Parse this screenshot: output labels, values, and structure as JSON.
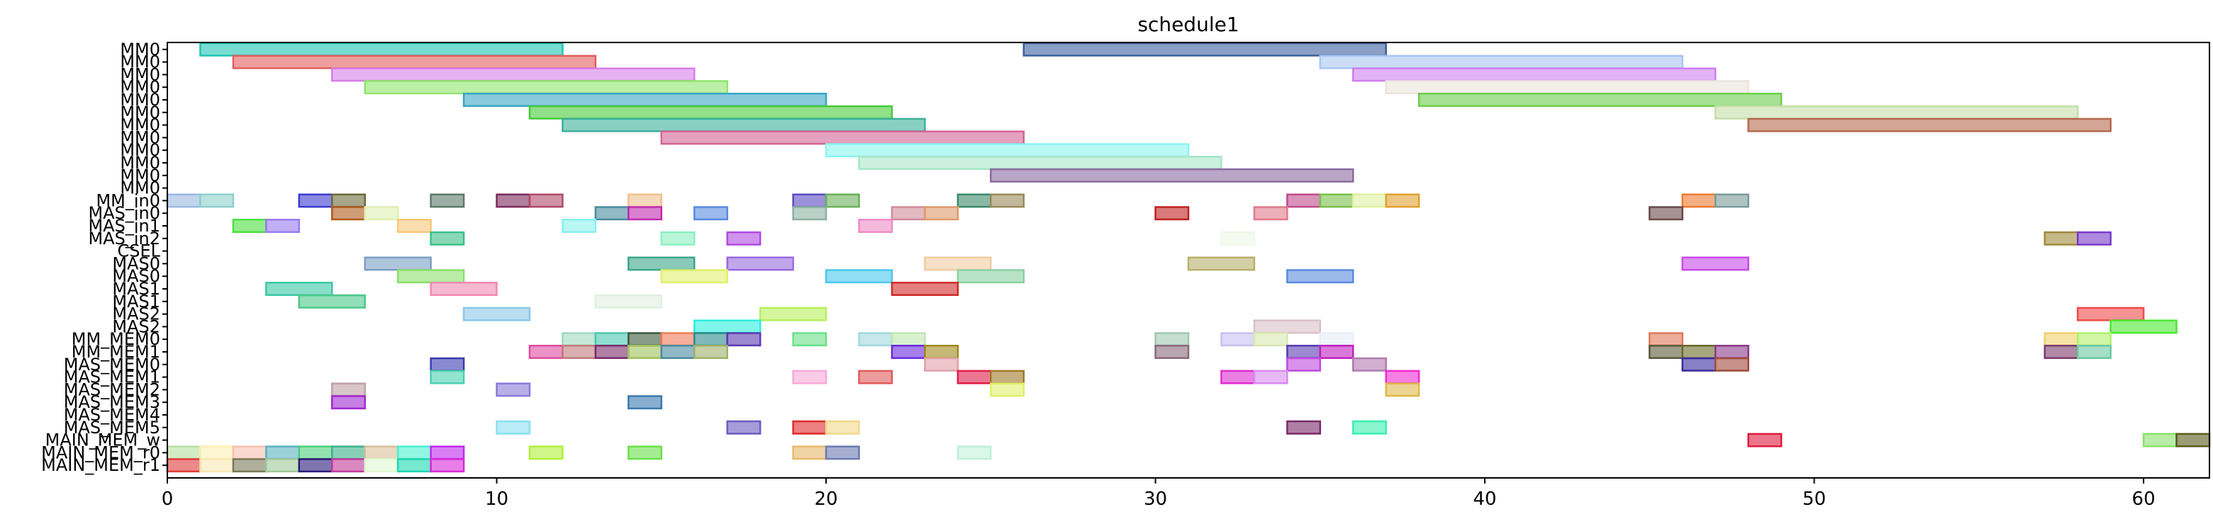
{
  "chart_data": {
    "type": "gantt",
    "title": "schedule1",
    "xlabel": "",
    "ylabel": "",
    "xlim": [
      0,
      62
    ],
    "x_ticks": [
      0,
      10,
      20,
      30,
      40,
      50,
      60
    ],
    "grid": false,
    "legend": "none",
    "rows": [
      "MM0",
      "MM0",
      "MM0",
      "MM0",
      "MM0",
      "MM0",
      "MM0",
      "MM0",
      "MM0",
      "MM0",
      "MM0",
      "MM0",
      "MM_in0",
      "MAS_in0",
      "MAS_in1",
      "MAS_in2",
      "CSEL",
      "MAS0",
      "MAS0",
      "MAS1",
      "MAS1",
      "MAS2",
      "MAS2",
      "MM_MEM0",
      "MM_MEM1",
      "MAS_MEM0",
      "MAS_MEM1",
      "MAS_MEM2",
      "MAS_MEM3",
      "MAS_MEM4",
      "MAS_MEM5",
      "MAIN_MEM_w",
      "MAIN_MEM_r0",
      "MAIN_MEM_r1"
    ],
    "bars": [
      {
        "row": 0,
        "start": 1,
        "end": 12,
        "color": "#1cc4b4"
      },
      {
        "row": 0,
        "start": 26,
        "end": 37,
        "color": "#3a5f9e"
      },
      {
        "row": 1,
        "start": 2,
        "end": 13,
        "color": "#e35d5d"
      },
      {
        "row": 1,
        "start": 35,
        "end": 46,
        "color": "#a9c4f2"
      },
      {
        "row": 2,
        "start": 5,
        "end": 16,
        "color": "#d77ee8"
      },
      {
        "row": 2,
        "start": 36,
        "end": 47,
        "color": "#cf7ef0"
      },
      {
        "row": 3,
        "start": 6,
        "end": 17,
        "color": "#8fe66b"
      },
      {
        "row": 3,
        "start": 37,
        "end": 48,
        "color": "#eae4dc"
      },
      {
        "row": 4,
        "start": 9,
        "end": 20,
        "color": "#3aa6c4"
      },
      {
        "row": 4,
        "start": 38,
        "end": 49,
        "color": "#6ccf4a"
      },
      {
        "row": 5,
        "start": 11,
        "end": 22,
        "color": "#47c93a"
      },
      {
        "row": 5,
        "start": 47,
        "end": 58,
        "color": "#c4e0a8"
      },
      {
        "row": 6,
        "start": 12,
        "end": 23,
        "color": "#3ab09a"
      },
      {
        "row": 6,
        "start": 48,
        "end": 59,
        "color": "#b5694f"
      },
      {
        "row": 7,
        "start": 15,
        "end": 26,
        "color": "#d46496"
      },
      {
        "row": 8,
        "start": 20,
        "end": 31,
        "color": "#8af5f0"
      },
      {
        "row": 9,
        "start": 21,
        "end": 32,
        "color": "#a6e6c8"
      },
      {
        "row": 10,
        "start": 25,
        "end": 36,
        "color": "#8a6aa0"
      },
      {
        "row": 12,
        "start": 0,
        "end": 1,
        "color": "#9ab8e0"
      },
      {
        "row": 12,
        "start": 1,
        "end": 2,
        "color": "#8ed0cc"
      },
      {
        "row": 12,
        "start": 4,
        "end": 5,
        "color": "#3a3ad0"
      },
      {
        "row": 12,
        "start": 5,
        "end": 6,
        "color": "#6b6b3a"
      },
      {
        "row": 12,
        "start": 8,
        "end": 9,
        "color": "#5a7a6a"
      },
      {
        "row": 12,
        "start": 10,
        "end": 11,
        "color": "#7a2a5a"
      },
      {
        "row": 12,
        "start": 11,
        "end": 12,
        "color": "#b04a6a"
      },
      {
        "row": 12,
        "start": 14,
        "end": 15,
        "color": "#f0c090"
      },
      {
        "row": 12,
        "start": 19,
        "end": 20,
        "color": "#5a4ac0"
      },
      {
        "row": 12,
        "start": 20,
        "end": 21,
        "color": "#6ab05a"
      },
      {
        "row": 12,
        "start": 24,
        "end": 25,
        "color": "#3a8a6a"
      },
      {
        "row": 12,
        "start": 25,
        "end": 26,
        "color": "#9a8a5a"
      },
      {
        "row": 12,
        "start": 34,
        "end": 35,
        "color": "#c04a8a"
      },
      {
        "row": 12,
        "start": 35,
        "end": 36,
        "color": "#7ac04a"
      },
      {
        "row": 12,
        "start": 36,
        "end": 37,
        "color": "#e0f0a0"
      },
      {
        "row": 12,
        "start": 37,
        "end": 38,
        "color": "#e0a030"
      },
      {
        "row": 12,
        "start": 46,
        "end": 47,
        "color": "#f07a30"
      },
      {
        "row": 12,
        "start": 47,
        "end": 48,
        "color": "#7a9a9a"
      },
      {
        "row": 13,
        "start": 5,
        "end": 6,
        "color": "#b05a1a"
      },
      {
        "row": 13,
        "start": 6,
        "end": 7,
        "color": "#e0f0b0"
      },
      {
        "row": 13,
        "start": 13,
        "end": 14,
        "color": "#4a8aa0"
      },
      {
        "row": 13,
        "start": 14,
        "end": 15,
        "color": "#c02ab0"
      },
      {
        "row": 13,
        "start": 16,
        "end": 17,
        "color": "#5a8ae0"
      },
      {
        "row": 13,
        "start": 19,
        "end": 20,
        "color": "#8ab0a0"
      },
      {
        "row": 13,
        "start": 22,
        "end": 23,
        "color": "#d08a9a"
      },
      {
        "row": 13,
        "start": 23,
        "end": 24,
        "color": "#e09a6a"
      },
      {
        "row": 13,
        "start": 30,
        "end": 31,
        "color": "#c02020"
      },
      {
        "row": 13,
        "start": 33,
        "end": 34,
        "color": "#e07a8a"
      },
      {
        "row": 13,
        "start": 45,
        "end": 46,
        "color": "#6a4a4a"
      },
      {
        "row": 14,
        "start": 2,
        "end": 3,
        "color": "#4ae040"
      },
      {
        "row": 14,
        "start": 3,
        "end": 4,
        "color": "#9a7af0"
      },
      {
        "row": 14,
        "start": 7,
        "end": 8,
        "color": "#f8c87a"
      },
      {
        "row": 14,
        "start": 12,
        "end": 13,
        "color": "#8af0f0"
      },
      {
        "row": 14,
        "start": 21,
        "end": 22,
        "color": "#f08ac8"
      },
      {
        "row": 15,
        "start": 8,
        "end": 9,
        "color": "#3ac08a"
      },
      {
        "row": 15,
        "start": 15,
        "end": 16,
        "color": "#8af0c0"
      },
      {
        "row": 15,
        "start": 17,
        "end": 18,
        "color": "#b04ae0"
      },
      {
        "row": 15,
        "start": 32,
        "end": 33,
        "color": "#f0f8e8"
      },
      {
        "row": 15,
        "start": 57,
        "end": 58,
        "color": "#a08a3a"
      },
      {
        "row": 15,
        "start": 58,
        "end": 59,
        "color": "#7a3ac8"
      },
      {
        "row": 17,
        "start": 6,
        "end": 8,
        "color": "#7a9ec4"
      },
      {
        "row": 17,
        "start": 14,
        "end": 16,
        "color": "#3aa68a"
      },
      {
        "row": 17,
        "start": 17,
        "end": 19,
        "color": "#9a6ae0"
      },
      {
        "row": 17,
        "start": 23,
        "end": 25,
        "color": "#f0cca0"
      },
      {
        "row": 17,
        "start": 31,
        "end": 33,
        "color": "#b8b06a"
      },
      {
        "row": 17,
        "start": 46,
        "end": 48,
        "color": "#c84ae8"
      },
      {
        "row": 18,
        "start": 7,
        "end": 9,
        "color": "#8ae06a"
      },
      {
        "row": 18,
        "start": 15,
        "end": 17,
        "color": "#e0f06a"
      },
      {
        "row": 18,
        "start": 20,
        "end": 22,
        "color": "#4ac8f0"
      },
      {
        "row": 18,
        "start": 24,
        "end": 26,
        "color": "#8ad0a0"
      },
      {
        "row": 18,
        "start": 34,
        "end": 36,
        "color": "#5a8ae0"
      },
      {
        "row": 19,
        "start": 3,
        "end": 5,
        "color": "#3ac8a6"
      },
      {
        "row": 19,
        "start": 8,
        "end": 10,
        "color": "#f08ab0"
      },
      {
        "row": 19,
        "start": 22,
        "end": 24,
        "color": "#d02a2a"
      },
      {
        "row": 20,
        "start": 4,
        "end": 6,
        "color": "#4ac88a"
      },
      {
        "row": 20,
        "start": 13,
        "end": 15,
        "color": "#e0f0e0"
      },
      {
        "row": 21,
        "start": 9,
        "end": 11,
        "color": "#8ac8e8"
      },
      {
        "row": 21,
        "start": 18,
        "end": 20,
        "color": "#b8f05a"
      },
      {
        "row": 21,
        "start": 58,
        "end": 60,
        "color": "#f04a4a"
      },
      {
        "row": 22,
        "start": 16,
        "end": 18,
        "color": "#2af0e0"
      },
      {
        "row": 22,
        "start": 33,
        "end": 35,
        "color": "#d8c0c8"
      },
      {
        "row": 22,
        "start": 59,
        "end": 61,
        "color": "#4ae830"
      },
      {
        "row": 23,
        "start": 12,
        "end": 13,
        "color": "#a0d8c0"
      },
      {
        "row": 23,
        "start": 13,
        "end": 14,
        "color": "#4ac8b0"
      },
      {
        "row": 23,
        "start": 14,
        "end": 15,
        "color": "#3a5a3a"
      },
      {
        "row": 23,
        "start": 15,
        "end": 16,
        "color": "#f07a5a"
      },
      {
        "row": 23,
        "start": 16,
        "end": 17,
        "color": "#2a8a8a"
      },
      {
        "row": 23,
        "start": 17,
        "end": 18,
        "color": "#5a3ab0"
      },
      {
        "row": 23,
        "start": 19,
        "end": 20,
        "color": "#6ae08a"
      },
      {
        "row": 23,
        "start": 21,
        "end": 22,
        "color": "#a0d8e0"
      },
      {
        "row": 23,
        "start": 22,
        "end": 23,
        "color": "#c0e8b0"
      },
      {
        "row": 23,
        "start": 30,
        "end": 31,
        "color": "#a0c8b0"
      },
      {
        "row": 23,
        "start": 32,
        "end": 33,
        "color": "#c8c0f0"
      },
      {
        "row": 23,
        "start": 33,
        "end": 34,
        "color": "#d8e8b0"
      },
      {
        "row": 23,
        "start": 35,
        "end": 36,
        "color": "#e8eef8"
      },
      {
        "row": 23,
        "start": 45,
        "end": 46,
        "color": "#e07a5a"
      },
      {
        "row": 23,
        "start": 57,
        "end": 58,
        "color": "#f0d06a"
      },
      {
        "row": 23,
        "start": 58,
        "end": 59,
        "color": "#b0f06a"
      },
      {
        "row": 24,
        "start": 11,
        "end": 12,
        "color": "#e04aa0"
      },
      {
        "row": 24,
        "start": 12,
        "end": 13,
        "color": "#c07a7a"
      },
      {
        "row": 24,
        "start": 13,
        "end": 14,
        "color": "#7a2a6a"
      },
      {
        "row": 24,
        "start": 14,
        "end": 15,
        "color": "#a0c05a"
      },
      {
        "row": 24,
        "start": 15,
        "end": 16,
        "color": "#4a8aa0"
      },
      {
        "row": 24,
        "start": 16,
        "end": 17,
        "color": "#a0b06a"
      },
      {
        "row": 24,
        "start": 22,
        "end": 23,
        "color": "#6a2ae0"
      },
      {
        "row": 24,
        "start": 23,
        "end": 24,
        "color": "#a08a1a"
      },
      {
        "row": 24,
        "start": 30,
        "end": 31,
        "color": "#8a6a7a"
      },
      {
        "row": 24,
        "start": 34,
        "end": 35,
        "color": "#5a3ab0"
      },
      {
        "row": 24,
        "start": 35,
        "end": 36,
        "color": "#c020c0"
      },
      {
        "row": 24,
        "start": 45,
        "end": 46,
        "color": "#5a5a3a"
      },
      {
        "row": 24,
        "start": 46,
        "end": 47,
        "color": "#6a6a2a"
      },
      {
        "row": 24,
        "start": 47,
        "end": 48,
        "color": "#8a3a8a"
      },
      {
        "row": 24,
        "start": 57,
        "end": 58,
        "color": "#7a3a6a"
      },
      {
        "row": 24,
        "start": 58,
        "end": 59,
        "color": "#6ac8a0"
      },
      {
        "row": 25,
        "start": 8,
        "end": 9,
        "color": "#3a3ab0"
      },
      {
        "row": 25,
        "start": 23,
        "end": 24,
        "color": "#e0a0a8"
      },
      {
        "row": 25,
        "start": 34,
        "end": 35,
        "color": "#c04ae0"
      },
      {
        "row": 25,
        "start": 36,
        "end": 37,
        "color": "#b07ab0"
      },
      {
        "row": 25,
        "start": 46,
        "end": 47,
        "color": "#3a2aa0"
      },
      {
        "row": 25,
        "start": 47,
        "end": 48,
        "color": "#a04a3a"
      },
      {
        "row": 26,
        "start": 8,
        "end": 9,
        "color": "#4ad0b0"
      },
      {
        "row": 26,
        "start": 19,
        "end": 20,
        "color": "#f8a8d8"
      },
      {
        "row": 26,
        "start": 21,
        "end": 22,
        "color": "#e05a5a"
      },
      {
        "row": 26,
        "start": 24,
        "end": 25,
        "color": "#e01a4a"
      },
      {
        "row": 26,
        "start": 25,
        "end": 26,
        "color": "#a07a2a"
      },
      {
        "row": 26,
        "start": 32,
        "end": 33,
        "color": "#e02ad0"
      },
      {
        "row": 26,
        "start": 33,
        "end": 34,
        "color": "#d88af0"
      },
      {
        "row": 26,
        "start": 37,
        "end": 38,
        "color": "#f02ad0"
      },
      {
        "row": 27,
        "start": 5,
        "end": 6,
        "color": "#c0a0a8"
      },
      {
        "row": 27,
        "start": 10,
        "end": 11,
        "color": "#8a7ad8"
      },
      {
        "row": 27,
        "start": 25,
        "end": 26,
        "color": "#e0f06a"
      },
      {
        "row": 27,
        "start": 37,
        "end": 38,
        "color": "#e0b84a"
      },
      {
        "row": 28,
        "start": 5,
        "end": 6,
        "color": "#a02ad0"
      },
      {
        "row": 28,
        "start": 14,
        "end": 15,
        "color": "#3a7ab0"
      },
      {
        "row": 30,
        "start": 10,
        "end": 11,
        "color": "#8ae0f0"
      },
      {
        "row": 30,
        "start": 17,
        "end": 18,
        "color": "#6a5ac0"
      },
      {
        "row": 30,
        "start": 19,
        "end": 20,
        "color": "#e02a2a"
      },
      {
        "row": 30,
        "start": 20,
        "end": 21,
        "color": "#f0d88a"
      },
      {
        "row": 30,
        "start": 34,
        "end": 35,
        "color": "#7a2a6a"
      },
      {
        "row": 30,
        "start": 36,
        "end": 37,
        "color": "#3af0b0"
      },
      {
        "row": 31,
        "start": 48,
        "end": 49,
        "color": "#e01a3a"
      },
      {
        "row": 31,
        "start": 60,
        "end": 61,
        "color": "#8ae06a"
      },
      {
        "row": 31,
        "start": 61,
        "end": 62,
        "color": "#5a5a1a"
      },
      {
        "row": 32,
        "start": 0,
        "end": 1,
        "color": "#b8e0a0"
      },
      {
        "row": 32,
        "start": 1,
        "end": 2,
        "color": "#f8f0b0"
      },
      {
        "row": 32,
        "start": 2,
        "end": 3,
        "color": "#f8c0b0"
      },
      {
        "row": 32,
        "start": 3,
        "end": 4,
        "color": "#5ab0c0"
      },
      {
        "row": 32,
        "start": 4,
        "end": 5,
        "color": "#4ad07a"
      },
      {
        "row": 32,
        "start": 5,
        "end": 6,
        "color": "#3ab08a"
      },
      {
        "row": 32,
        "start": 6,
        "end": 7,
        "color": "#d8c09a"
      },
      {
        "row": 32,
        "start": 7,
        "end": 8,
        "color": "#4af0d0"
      },
      {
        "row": 32,
        "start": 8,
        "end": 9,
        "color": "#c02af0"
      },
      {
        "row": 32,
        "start": 11,
        "end": 12,
        "color": "#b0f03a"
      },
      {
        "row": 32,
        "start": 14,
        "end": 15,
        "color": "#6ae04a"
      },
      {
        "row": 32,
        "start": 19,
        "end": 20,
        "color": "#e8b86a"
      },
      {
        "row": 32,
        "start": 20,
        "end": 21,
        "color": "#6a7ab0"
      },
      {
        "row": 32,
        "start": 24,
        "end": 25,
        "color": "#c0f0d8"
      },
      {
        "row": 33,
        "start": 0,
        "end": 1,
        "color": "#e03a3a"
      },
      {
        "row": 33,
        "start": 1,
        "end": 2,
        "color": "#f8e8b0"
      },
      {
        "row": 33,
        "start": 2,
        "end": 3,
        "color": "#7a7a5a"
      },
      {
        "row": 33,
        "start": 3,
        "end": 4,
        "color": "#a0c89a"
      },
      {
        "row": 33,
        "start": 4,
        "end": 5,
        "color": "#2a1a7a"
      },
      {
        "row": 33,
        "start": 5,
        "end": 6,
        "color": "#c03a9a"
      },
      {
        "row": 33,
        "start": 6,
        "end": 7,
        "color": "#e0f8d0"
      },
      {
        "row": 33,
        "start": 7,
        "end": 8,
        "color": "#1ad8b0"
      },
      {
        "row": 33,
        "start": 8,
        "end": 9,
        "color": "#d82ad8"
      }
    ]
  }
}
